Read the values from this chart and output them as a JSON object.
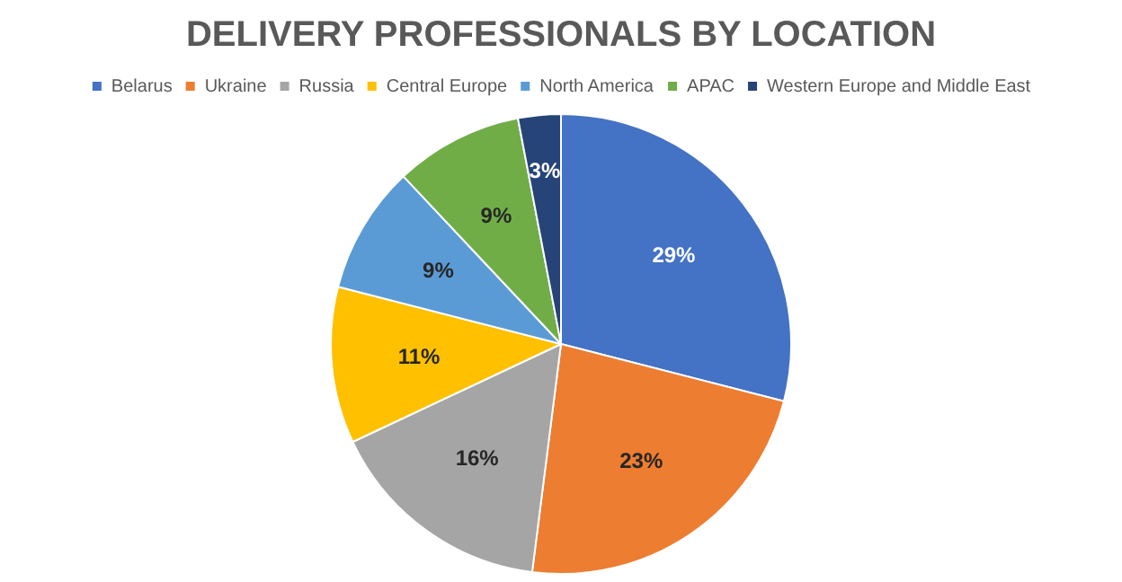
{
  "chart_data": {
    "type": "pie",
    "title": "DELIVERY PROFESSIONALS BY LOCATION",
    "categories": [
      "Belarus",
      "Ukraine",
      "Russia",
      "Central Europe",
      "North America",
      "APAC",
      "Western Europe and Middle East"
    ],
    "values": [
      29,
      23,
      16,
      11,
      9,
      9,
      3
    ],
    "colors": [
      "#4472c4",
      "#ed7d31",
      "#a5a5a5",
      "#ffc000",
      "#5b9bd5",
      "#70ad47",
      "#264478"
    ],
    "value_labels": [
      "29%",
      "23%",
      "16%",
      "11%",
      "9%",
      "9%",
      "3%"
    ],
    "legend": "top"
  }
}
